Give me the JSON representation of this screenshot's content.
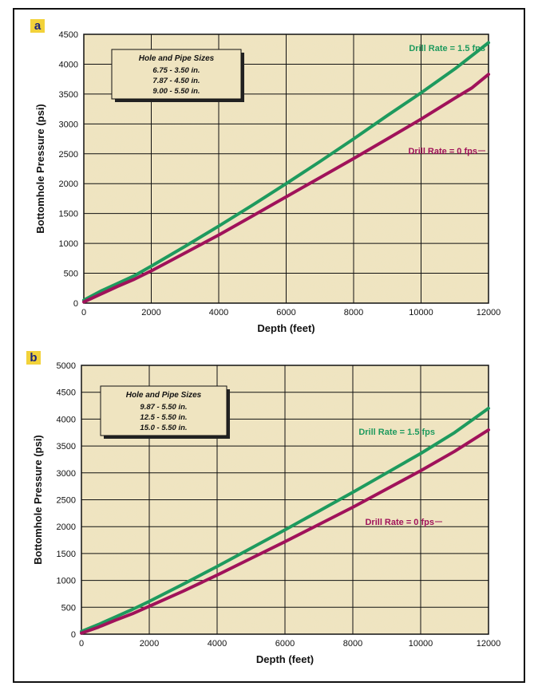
{
  "chart_data": [
    {
      "panel": "a",
      "type": "line",
      "xlabel": "Depth (feet)",
      "ylabel": "Bottomhole Pressure (psi)",
      "xlim": [
        0,
        12000
      ],
      "ylim": [
        0,
        4500
      ],
      "xticks": [
        0,
        2000,
        4000,
        6000,
        8000,
        10000,
        12000
      ],
      "yticks": [
        0,
        500,
        1000,
        1500,
        2000,
        2500,
        3000,
        3500,
        4000,
        4500
      ],
      "grid": true,
      "legend_box": {
        "title": "Hole and Pipe Sizes",
        "items": [
          "6.75 - 3.50 in.",
          "7.87 - 4.50 in.",
          "9.00 - 5.50 in."
        ]
      },
      "series": [
        {
          "name": "Drill Rate = 1.5 fps",
          "color": "#1e9a5e",
          "x": [
            0,
            500,
            1000,
            1500,
            2000,
            3000,
            4000,
            5000,
            6000,
            7000,
            8000,
            9000,
            10000,
            11000,
            12000
          ],
          "y": [
            50,
            200,
            330,
            460,
            620,
            950,
            1290,
            1640,
            2000,
            2370,
            2750,
            3140,
            3520,
            3920,
            4360
          ]
        },
        {
          "name": "Drill Rate = 0 fps",
          "color": "#a0125a",
          "x": [
            0,
            500,
            1000,
            1500,
            2000,
            3000,
            4000,
            5000,
            6000,
            7000,
            8000,
            9000,
            10000,
            11000,
            11500,
            12000
          ],
          "y": [
            20,
            150,
            280,
            400,
            540,
            840,
            1140,
            1460,
            1780,
            2100,
            2420,
            2750,
            3080,
            3430,
            3600,
            3830
          ]
        }
      ]
    },
    {
      "panel": "b",
      "type": "line",
      "xlabel": "Depth (feet)",
      "ylabel": "Bottomhole Pressure (psi)",
      "xlim": [
        0,
        12000
      ],
      "ylim": [
        0,
        5000
      ],
      "xticks": [
        0,
        2000,
        4000,
        6000,
        8000,
        10000,
        12000
      ],
      "yticks": [
        0,
        500,
        1000,
        1500,
        2000,
        2500,
        3000,
        3500,
        4000,
        4500,
        5000
      ],
      "grid": true,
      "legend_box": {
        "title": "Hole and Pipe Sizes",
        "items": [
          "9.87 - 5.50 in.",
          "12.5 - 5.50 in.",
          "15.0 - 5.50 in."
        ]
      },
      "series": [
        {
          "name": "Drill Rate = 1.5 fps",
          "color": "#1e9a5e",
          "x": [
            0,
            500,
            1000,
            1500,
            2000,
            3000,
            4000,
            5000,
            6000,
            7000,
            8000,
            9000,
            10000,
            11000,
            12000
          ],
          "y": [
            50,
            180,
            320,
            460,
            610,
            930,
            1260,
            1600,
            1940,
            2290,
            2640,
            3000,
            3360,
            3750,
            4200
          ]
        },
        {
          "name": "Drill Rate = 0 fps",
          "color": "#a0125a",
          "x": [
            0,
            500,
            1000,
            1500,
            2000,
            3000,
            4000,
            5000,
            6000,
            7000,
            8000,
            9000,
            10000,
            11000,
            12000
          ],
          "y": [
            20,
            130,
            260,
            380,
            520,
            800,
            1100,
            1410,
            1720,
            2040,
            2360,
            2700,
            3040,
            3400,
            3800
          ]
        }
      ]
    }
  ]
}
